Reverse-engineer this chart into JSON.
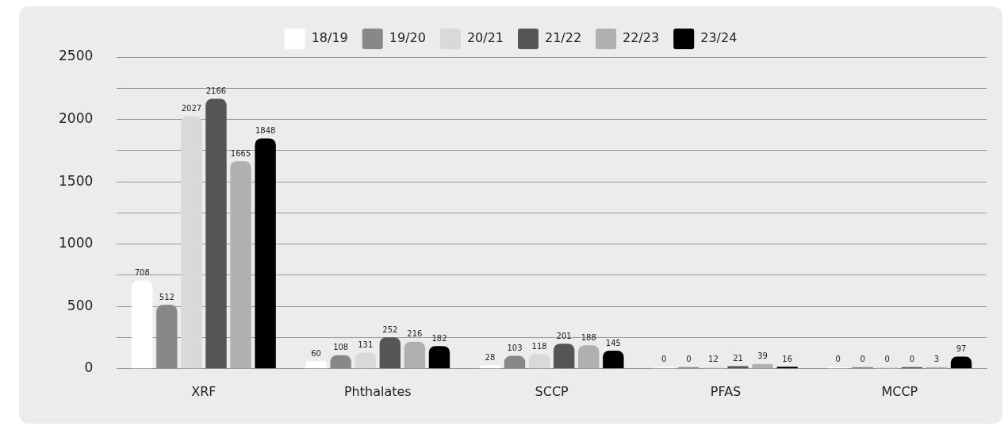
{
  "chart_data": {
    "type": "bar",
    "categories": [
      "XRF",
      "Phthalates",
      "SCCP",
      "PFAS",
      "MCCP"
    ],
    "series": [
      {
        "name": "18/19",
        "color": "#ffffff",
        "values": [
          708,
          60,
          28,
          0,
          0
        ]
      },
      {
        "name": "19/20",
        "color": "#888888",
        "values": [
          512,
          108,
          103,
          0,
          0
        ]
      },
      {
        "name": "20/21",
        "color": "#d9d9d9",
        "values": [
          2027,
          131,
          118,
          12,
          0
        ]
      },
      {
        "name": "21/22",
        "color": "#555555",
        "values": [
          2166,
          252,
          201,
          21,
          0
        ]
      },
      {
        "name": "22/23",
        "color": "#b0b0b0",
        "values": [
          1665,
          216,
          188,
          39,
          3
        ]
      },
      {
        "name": "23/24",
        "color": "#000000",
        "values": [
          1848,
          182,
          145,
          16,
          97
        ]
      }
    ],
    "ylim": [
      0,
      2500
    ],
    "yticks": [
      0,
      {
        "value": 250,
        "label": null
      },
      500,
      {
        "value": 750,
        "label": null
      },
      1000,
      {
        "value": 1250,
        "label": null
      },
      1500,
      {
        "value": 1750,
        "label": null
      },
      2000,
      {
        "value": 2250,
        "label": null
      },
      2500
    ],
    "grid": "y",
    "legend": "top",
    "data_labels": true
  }
}
